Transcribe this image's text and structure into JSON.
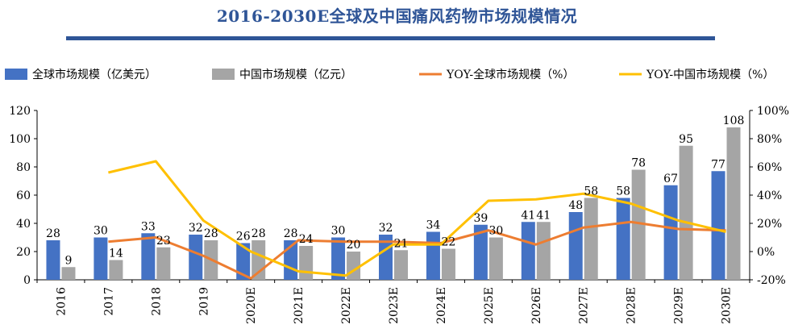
{
  "chart_data": {
    "type": "bar+line",
    "title": "2016-2030E全球及中国痛风药物市场规模情况",
    "categories": [
      "2016",
      "2017",
      "2018",
      "2019",
      "2020E",
      "2021E",
      "2022E",
      "2023E",
      "2024E",
      "2025E",
      "2026E",
      "2027E",
      "2028E",
      "2029E",
      "2030E"
    ],
    "left_axis": {
      "ylim": [
        0,
        120
      ],
      "ticks": [
        "0",
        "20",
        "40",
        "60",
        "80",
        "100",
        "120"
      ]
    },
    "right_axis": {
      "ylim": [
        -20,
        100
      ],
      "ticks": [
        "-20%",
        "0%",
        "20%",
        "40%",
        "60%",
        "80%",
        "100%"
      ]
    },
    "series": [
      {
        "name": "全球市场规模（亿美元）",
        "kind": "bar",
        "axis": "left",
        "color": "#4472c4",
        "values": [
          28,
          30,
          33,
          32,
          26,
          28,
          30,
          32,
          34,
          39,
          41,
          48,
          58,
          67,
          77
        ],
        "labels": [
          "28",
          "30",
          "33",
          "32",
          "26",
          "28",
          "30",
          "32",
          "34",
          "39",
          "41",
          "48",
          "58",
          "67",
          "77"
        ]
      },
      {
        "name": "中国市场规模（亿元）",
        "kind": "bar",
        "axis": "left",
        "color": "#a5a5a5",
        "values": [
          9,
          14,
          23,
          28,
          28,
          24,
          20,
          21,
          22,
          30,
          41,
          58,
          78,
          95,
          108
        ],
        "labels": [
          "9",
          "14",
          "23",
          "28",
          "28",
          "24",
          "20",
          "21",
          "22",
          "30",
          "41",
          "58",
          "78",
          "95",
          "108"
        ]
      },
      {
        "name": "YOY-全球市场规模（%）",
        "kind": "line",
        "axis": "right",
        "color": "#ed7d31",
        "values": [
          null,
          7,
          10,
          -3,
          -19,
          8,
          7,
          7,
          6,
          15,
          5,
          17,
          21,
          16,
          15
        ]
      },
      {
        "name": "YOY-中国市场规模（%）",
        "kind": "line",
        "axis": "right",
        "color": "#ffc000",
        "values": [
          null,
          56,
          64,
          22,
          0,
          -14,
          -17,
          5,
          5,
          36,
          37,
          41,
          34,
          22,
          14
        ]
      }
    ],
    "legend_position": "top"
  }
}
